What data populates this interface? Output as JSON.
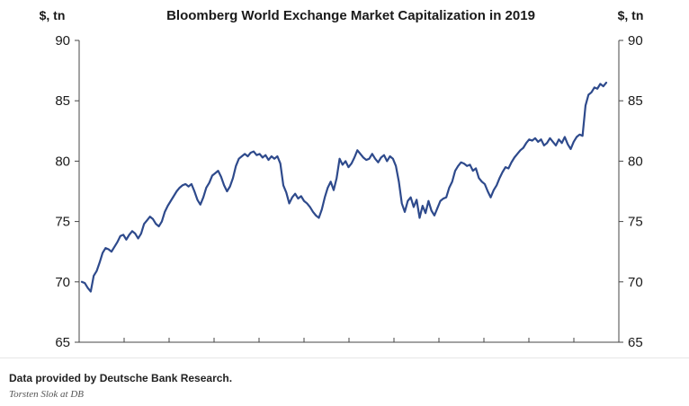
{
  "chart_data": {
    "type": "line",
    "title": "Bloomberg World Exchange Market Capitalization in 2019",
    "left_unit": "$, tn",
    "right_unit": "$, tn",
    "ylim": [
      65,
      90
    ],
    "yticks": [
      65,
      70,
      75,
      80,
      85,
      90
    ],
    "ytick_labels": [
      "65",
      "70",
      "75",
      "80",
      "85",
      "90"
    ],
    "grid": false,
    "line_color": "#2e4a8c",
    "x_minor_ticks": 12,
    "series": [
      {
        "values": [
          70.0,
          69.9,
          69.5,
          69.2,
          70.5,
          70.9,
          71.6,
          72.4,
          72.8,
          72.7,
          72.5,
          72.9,
          73.3,
          73.8,
          73.9,
          73.5,
          73.9,
          74.2,
          74.0,
          73.6,
          74.0,
          74.8,
          75.1,
          75.4,
          75.2,
          74.8,
          74.6,
          75.0,
          75.8,
          76.3,
          76.7,
          77.1,
          77.5,
          77.8,
          78.0,
          78.1,
          77.9,
          78.1,
          77.5,
          76.8,
          76.4,
          77.0,
          77.8,
          78.2,
          78.8,
          79.0,
          79.2,
          78.7,
          78.0,
          77.5,
          77.9,
          78.6,
          79.6,
          80.2,
          80.4,
          80.6,
          80.4,
          80.7,
          80.8,
          80.5,
          80.6,
          80.3,
          80.5,
          80.1,
          80.4,
          80.2,
          80.4,
          79.8,
          78.0,
          77.4,
          76.5,
          77.0,
          77.3,
          76.9,
          77.1,
          76.7,
          76.5,
          76.2,
          75.8,
          75.5,
          75.3,
          76.0,
          77.0,
          77.8,
          78.3,
          77.6,
          78.6,
          80.2,
          79.7,
          80.0,
          79.5,
          79.8,
          80.3,
          80.9,
          80.6,
          80.3,
          80.1,
          80.2,
          80.6,
          80.2,
          79.9,
          80.3,
          80.5,
          80.0,
          80.4,
          80.2,
          79.6,
          78.3,
          76.5,
          75.8,
          76.7,
          77.0,
          76.2,
          76.8,
          75.3,
          76.3,
          75.7,
          76.7,
          75.9,
          75.5,
          76.1,
          76.7,
          76.9,
          77.0,
          77.8,
          78.3,
          79.2,
          79.6,
          79.9,
          79.8,
          79.6,
          79.7,
          79.2,
          79.4,
          78.6,
          78.3,
          78.1,
          77.5,
          77.0,
          77.6,
          78.0,
          78.6,
          79.1,
          79.5,
          79.4,
          79.9,
          80.3,
          80.6,
          80.9,
          81.1,
          81.5,
          81.8,
          81.7,
          81.9,
          81.6,
          81.8,
          81.3,
          81.5,
          81.9,
          81.6,
          81.3,
          81.8,
          81.5,
          82.0,
          81.4,
          81.0,
          81.6,
          82.0,
          82.2,
          82.1,
          84.6,
          85.5,
          85.7,
          86.1,
          86.0,
          86.4,
          86.2,
          86.5
        ]
      }
    ]
  },
  "caption": "Data provided by Deutsche Bank Research.",
  "credit": "Torsten Slok at DB"
}
